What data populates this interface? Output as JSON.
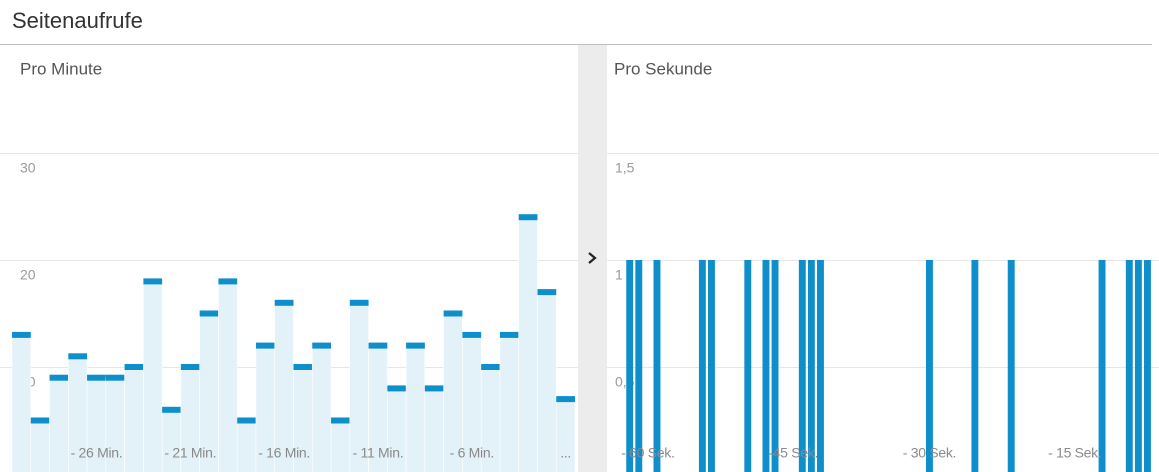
{
  "title": "Seitenaufrufe",
  "chart_data": [
    {
      "type": "bar",
      "title": "Pro Minute",
      "categories": [
        null,
        null,
        null,
        null,
        "- 26 Min.",
        null,
        null,
        null,
        null,
        "- 21 Min.",
        null,
        null,
        null,
        null,
        "- 16 Min.",
        null,
        null,
        null,
        null,
        "- 11 Min.",
        null,
        null,
        null,
        null,
        "- 6 Min.",
        null,
        null,
        null,
        null,
        "..."
      ],
      "values": [
        13,
        5,
        9,
        11,
        9,
        9,
        10,
        18,
        6,
        10,
        15,
        18,
        5,
        12,
        16,
        10,
        12,
        5,
        16,
        12,
        8,
        12,
        8,
        15,
        13,
        10,
        13,
        24,
        17,
        7
      ],
      "color": "#0e8ecb",
      "fill_color": "#e3f1f9",
      "ylim": [
        0,
        30
      ],
      "yticks": [
        10,
        20,
        30
      ],
      "grid": true
    },
    {
      "type": "bar",
      "title": "Pro Sekunde",
      "categories": [
        null,
        null,
        null,
        null,
        "- 60 Sek.",
        null,
        null,
        null,
        null,
        null,
        null,
        null,
        null,
        null,
        null,
        null,
        null,
        null,
        null,
        null,
        "-45 Sek.",
        null,
        null,
        null,
        null,
        null,
        null,
        null,
        null,
        null,
        null,
        null,
        null,
        null,
        null,
        "- 30 Sek.",
        null,
        null,
        null,
        null,
        null,
        null,
        null,
        null,
        null,
        null,
        null,
        null,
        null,
        null,
        null,
        "- 15 Sek.",
        null,
        null,
        null,
        null,
        null,
        null,
        null,
        null
      ],
      "values": [
        0,
        0,
        1,
        1,
        0,
        1,
        0,
        0,
        0,
        0,
        1,
        1,
        0,
        0,
        0,
        1,
        0,
        1,
        1,
        0,
        0,
        1,
        1,
        1,
        0,
        0,
        0,
        0,
        0,
        0,
        0,
        0,
        0,
        0,
        0,
        1,
        0,
        0,
        0,
        0,
        1,
        0,
        0,
        0,
        1,
        0,
        0,
        0,
        0,
        0,
        0,
        0,
        0,
        0,
        1,
        0,
        0,
        1,
        1,
        1
      ],
      "color": "#0e8ecb",
      "ylim": [
        0,
        1.5
      ],
      "yticks": [
        {
          "value": 0.5,
          "label": "0,5"
        },
        1,
        {
          "value": 1.5,
          "label": "1,5"
        }
      ],
      "grid": true
    }
  ]
}
